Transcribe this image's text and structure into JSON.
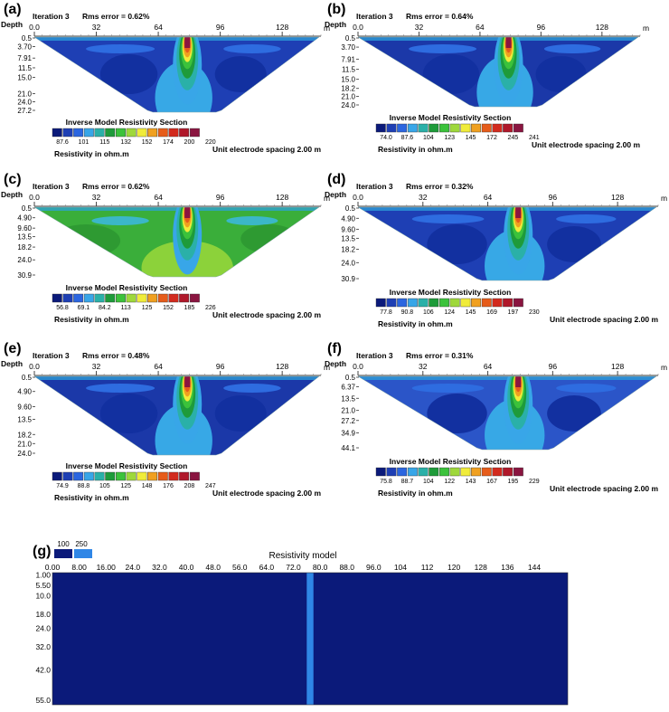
{
  "chart_data": [
    {
      "panel": "(a)",
      "type": "heatmap",
      "iteration": "Iteration 3",
      "rms": "Rms error = 0.62%",
      "x_label": "m",
      "depth_label": "Depth",
      "x_ticks": [
        "0.0",
        "32",
        "64",
        "96",
        "128"
      ],
      "x_tick_values": [
        0,
        32,
        64,
        96,
        128
      ],
      "x_max": 148,
      "depth_ticks": [
        "0.5",
        "3.70",
        "7.91",
        "11.5",
        "15.0",
        "21.0",
        "24.0",
        "27.2"
      ],
      "depth_values": [
        0.5,
        3.7,
        7.91,
        11.5,
        15.0,
        21.0,
        24.0,
        27.2
      ],
      "background": "#1E3FB4",
      "anomaly_x": 79,
      "legend_title": "Inverse Model Resistivity Section",
      "legend_values": [
        "87.6",
        "101",
        "115",
        "132",
        "152",
        "174",
        "200",
        "220"
      ],
      "legend_unit": "Resistivity in ohm.m",
      "spacing": "Unit electrode spacing 2.00 m"
    },
    {
      "panel": "(b)",
      "type": "heatmap",
      "iteration": "Iteration 3",
      "rms": "Rms error = 0.64%",
      "x_label": "m",
      "depth_label": "Depth",
      "x_ticks": [
        "0.0",
        "32",
        "64",
        "96",
        "128"
      ],
      "x_tick_values": [
        0,
        32,
        64,
        96,
        128
      ],
      "x_max": 148,
      "depth_ticks": [
        "0.5",
        "3.70",
        "7.91",
        "11.5",
        "15.0",
        "18.2",
        "21.0",
        "24.0"
      ],
      "depth_values": [
        0.5,
        3.7,
        7.91,
        11.5,
        15.0,
        18.2,
        21.0,
        24.0
      ],
      "background": "#1B38A8",
      "anomaly_x": 79,
      "legend_title": "Inverse Model Resistivity Section",
      "legend_values": [
        "74.0",
        "87.6",
        "104",
        "123",
        "145",
        "172",
        "245",
        "241"
      ],
      "legend_unit": "Resistivity in ohm.m",
      "spacing": "Unit electrode spacing 2.00 m"
    },
    {
      "panel": "(c)",
      "type": "heatmap",
      "iteration": "Iteration 3",
      "rms": "Rms error = 0.62%",
      "x_label": "m",
      "depth_label": "Depth",
      "x_ticks": [
        "0.0",
        "32",
        "64",
        "96",
        "128"
      ],
      "x_tick_values": [
        0,
        32,
        64,
        96,
        128
      ],
      "x_max": 148,
      "depth_ticks": [
        "0.5",
        "4.90",
        "9.60",
        "13.5",
        "18.2",
        "24.0",
        "30.9"
      ],
      "depth_values": [
        0.5,
        4.9,
        9.6,
        13.5,
        18.2,
        24.0,
        30.9
      ],
      "background": "#3AAE3A",
      "anomaly_x": 79,
      "legend_title": "Inverse Model Resistivity Section",
      "legend_values": [
        "56.8",
        "69.1",
        "84.2",
        "113",
        "125",
        "152",
        "185",
        "226"
      ],
      "legend_unit": "Resistivity in ohm.m",
      "spacing": "Unit electrode spacing 2.00 m"
    },
    {
      "panel": "(d)",
      "type": "heatmap",
      "iteration": "Iteration 3",
      "rms": "Rms error = 0.32%",
      "x_label": "m",
      "depth_label": "Depth",
      "x_ticks": [
        "0.0",
        "32",
        "64",
        "96",
        "128"
      ],
      "x_tick_values": [
        0,
        32,
        64,
        96,
        128
      ],
      "x_max": 148,
      "depth_ticks": [
        "0.5",
        "4.90",
        "9.60",
        "13.5",
        "18.2",
        "24.0",
        "30.9"
      ],
      "depth_values": [
        0.5,
        4.9,
        9.6,
        13.5,
        18.2,
        24.0,
        30.9
      ],
      "background": "#1E3FB4",
      "anomaly_x": 79,
      "legend_title": "Inverse Model Resistivity Section",
      "legend_values": [
        "77.8",
        "90.8",
        "106",
        "124",
        "145",
        "169",
        "197",
        "230"
      ],
      "legend_unit": "Resistivity in ohm.m",
      "spacing": "Unit electrode spacing 2.00 m"
    },
    {
      "panel": "(e)",
      "type": "heatmap",
      "iteration": "Iteration 3",
      "rms": "Rms error = 0.48%",
      "x_label": "m",
      "depth_label": "Depth",
      "x_ticks": [
        "0.0",
        "32",
        "64",
        "96",
        "128"
      ],
      "x_tick_values": [
        0,
        32,
        64,
        96,
        128
      ],
      "x_max": 148,
      "depth_ticks": [
        "0.5",
        "4.90",
        "9.60",
        "13.5",
        "18.2",
        "21.0",
        "24.0"
      ],
      "depth_values": [
        0.5,
        4.9,
        9.6,
        13.5,
        18.2,
        21.0,
        24.0
      ],
      "background": "#1B38A8",
      "anomaly_x": 79,
      "legend_title": "Inverse Model Resistivity Section",
      "legend_values": [
        "74.9",
        "88.8",
        "105",
        "125",
        "148",
        "176",
        "208",
        "247"
      ],
      "legend_unit": "Resistivity in ohm.m",
      "spacing": "Unit electrode spacing 2.00 m"
    },
    {
      "panel": "(f)",
      "type": "heatmap",
      "iteration": "Iteration 3",
      "rms": "Rms error = 0.31%",
      "x_label": "m",
      "depth_label": "Depth",
      "x_ticks": [
        "0.0",
        "32",
        "64",
        "96",
        "128"
      ],
      "x_tick_values": [
        0,
        32,
        64,
        96,
        128
      ],
      "x_max": 148,
      "depth_ticks": [
        "0.5",
        "6.37",
        "13.5",
        "21.0",
        "27.2",
        "34.9",
        "44.1"
      ],
      "depth_values": [
        0.5,
        6.37,
        13.5,
        21.0,
        27.2,
        34.9,
        44.1
      ],
      "background": "#2B55C8",
      "anomaly_x": 79,
      "legend_title": "Inverse Model Resistivity Section",
      "legend_values": [
        "75.8",
        "88.7",
        "104",
        "122",
        "143",
        "167",
        "195",
        "229"
      ],
      "legend_unit": "Resistivity in ohm.m",
      "spacing": "Unit electrode spacing 2.00 m"
    },
    {
      "panel": "(g)",
      "type": "heatmap",
      "title": "Resistivity model",
      "legend_values": [
        "100",
        "250"
      ],
      "legend_colors": [
        "#0B1A7A",
        "#2F86E6"
      ],
      "x_ticks": [
        "0.00",
        "8.00",
        "16.00",
        "24.0",
        "32.0",
        "40.0",
        "48.0",
        "56.0",
        "64.0",
        "72.0",
        "80.0",
        "88.0",
        "96.0",
        "104",
        "112",
        "120",
        "128",
        "136",
        "144"
      ],
      "x_tick_values": [
        0,
        8,
        16,
        24,
        32,
        40,
        48,
        56,
        64,
        72,
        80,
        88,
        96,
        104,
        112,
        120,
        128,
        136,
        144
      ],
      "x_max": 154,
      "depth_ticks": [
        "1.00",
        "5.50",
        "10.0",
        "18.0",
        "24.0",
        "32.0",
        "42.0",
        "55.0"
      ],
      "depth_values": [
        1.0,
        5.5,
        10.0,
        18.0,
        24.0,
        32.0,
        42.0,
        55.0
      ],
      "depth_max": 57,
      "background_value": 100,
      "anomaly_value": 250,
      "anomaly_x": [
        76,
        78
      ]
    }
  ]
}
